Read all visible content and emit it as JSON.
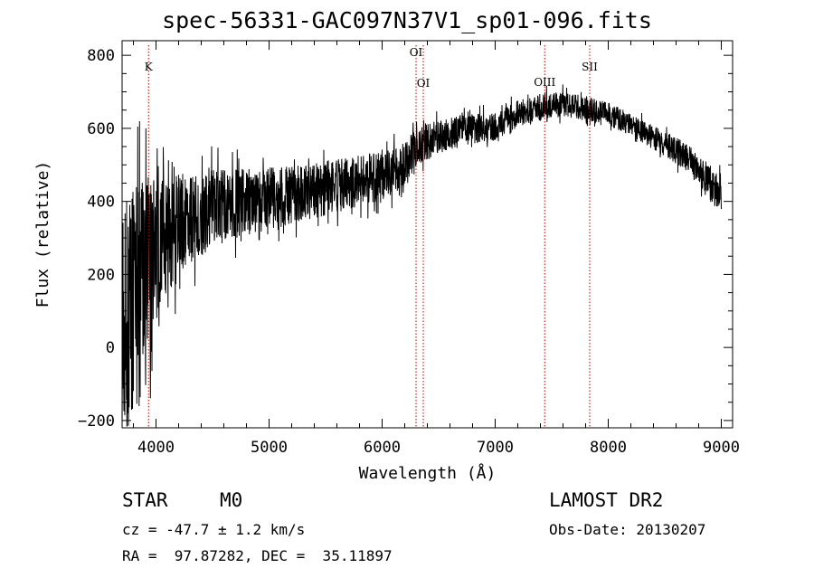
{
  "chart_data": {
    "type": "line",
    "title": "spec-56331-GAC097N37V1_sp01-096.fits",
    "xlabel": "Wavelength (Å)",
    "ylabel": "Flux (relative)",
    "xlim": [
      3700,
      9100
    ],
    "ylim": [
      -220,
      840
    ],
    "xticks": [
      4000,
      5000,
      6000,
      7000,
      8000,
      9000
    ],
    "yticks": [
      -200,
      0,
      200,
      400,
      600,
      800
    ],
    "grid": false,
    "line_color": "#000000",
    "marker_color": "#c00000",
    "lines": [
      {
        "label": "K",
        "x": 3934
      },
      {
        "label": "OI",
        "x": 6300
      },
      {
        "label": "OI",
        "x": 6364
      },
      {
        "label": "OIII",
        "x": 7438
      },
      {
        "label": "SII",
        "x": 7836
      }
    ],
    "continuum": [
      [
        3700,
        80
      ],
      [
        3900,
        170
      ],
      [
        4000,
        260
      ],
      [
        4200,
        330
      ],
      [
        4500,
        380
      ],
      [
        4800,
        400
      ],
      [
        5100,
        410
      ],
      [
        5400,
        430
      ],
      [
        5700,
        450
      ],
      [
        6000,
        470
      ],
      [
        6200,
        500
      ],
      [
        6350,
        560
      ],
      [
        6700,
        595
      ],
      [
        7000,
        605
      ],
      [
        7200,
        640
      ],
      [
        7450,
        660
      ],
      [
        7600,
        665
      ],
      [
        7800,
        655
      ],
      [
        8000,
        640
      ],
      [
        8200,
        610
      ],
      [
        8400,
        575
      ],
      [
        8600,
        540
      ],
      [
        8750,
        505
      ],
      [
        8850,
        470
      ],
      [
        8950,
        430
      ],
      [
        9000,
        420
      ]
    ],
    "noise": [
      [
        3700,
        330
      ],
      [
        3900,
        310
      ],
      [
        4000,
        190
      ],
      [
        4300,
        120
      ],
      [
        4700,
        95
      ],
      [
        5200,
        80
      ],
      [
        5800,
        70
      ],
      [
        6300,
        60
      ],
      [
        6500,
        45
      ],
      [
        7000,
        38
      ],
      [
        7600,
        35
      ],
      [
        8200,
        30
      ],
      [
        8800,
        40
      ],
      [
        9000,
        60
      ]
    ],
    "sample_step": 2
  },
  "info": {
    "class": "STAR",
    "subclass": "M0",
    "survey": "LAMOST DR2",
    "redshift": "cz = -47.7 ± 1.2 km/s",
    "obsdate": "Obs-Date: 20130207",
    "coords": "RA =  97.87282, DEC =  35.11897"
  }
}
